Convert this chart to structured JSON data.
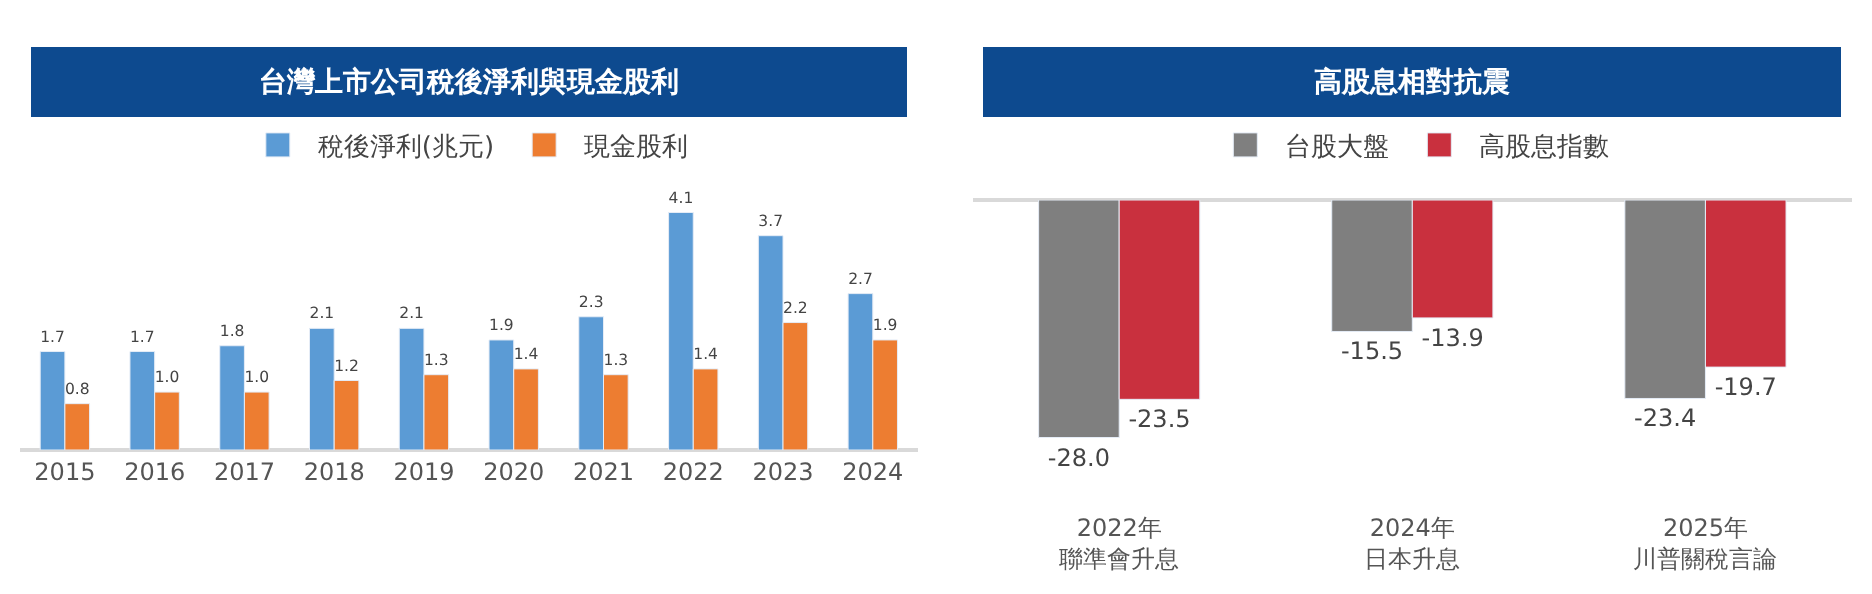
{
  "chart_data": [
    {
      "type": "bar",
      "title": "台灣上市公司稅後淨利與現金股利",
      "categories": [
        "2015",
        "2016",
        "2017",
        "2018",
        "2019",
        "2020",
        "2021",
        "2022",
        "2023",
        "2024"
      ],
      "series": [
        {
          "name": "稅後淨利(兆元)",
          "color": "#5b9bd5",
          "values": [
            1.7,
            1.7,
            1.8,
            2.1,
            2.1,
            1.9,
            2.3,
            4.1,
            3.7,
            2.7
          ],
          "value_labels": [
            "1.7",
            "1.7",
            "1.8",
            "2.1",
            "2.1",
            "1.9",
            "2.3",
            "4.1",
            "3.7",
            "2.7"
          ]
        },
        {
          "name": "現金股利",
          "color": "#ed7d31",
          "values": [
            0.8,
            1.0,
            1.0,
            1.2,
            1.3,
            1.4,
            1.3,
            1.4,
            2.2,
            1.9
          ],
          "value_labels": [
            "0.8",
            "1.0",
            "1.0",
            "1.2",
            "1.3",
            "1.4",
            "1.3",
            "1.4",
            "2.2",
            "1.9"
          ]
        }
      ],
      "legend": "top"
    },
    {
      "type": "bar",
      "title": "高股息相對抗震",
      "categories": [
        "2022年聯準會升息",
        "2024年日本升息",
        "2025年川普關稅言論"
      ],
      "series": [
        {
          "name": "台股大盤",
          "color": "#7f7f7f",
          "values": [
            -28.0,
            -15.5,
            -23.4
          ],
          "value_labels": [
            "-28.0",
            "-15.5",
            "-23.4"
          ]
        },
        {
          "name": "高股息指數",
          "color": "#c9303e",
          "values": [
            -23.5,
            -13.9,
            -19.7
          ],
          "value_labels": [
            "-23.5",
            "-13.9",
            "-19.7"
          ]
        }
      ],
      "legend": "top"
    }
  ]
}
